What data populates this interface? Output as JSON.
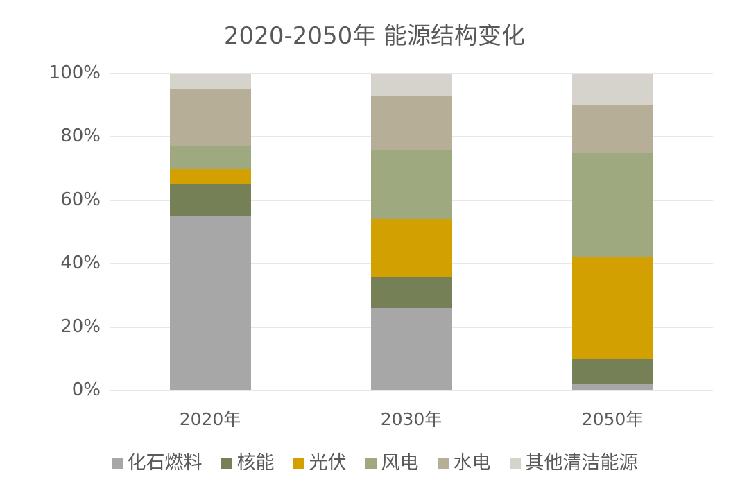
{
  "chart_data": {
    "type": "bar",
    "stacked": true,
    "title": "2020-2050年 能源结构变化",
    "categories": [
      "2020年",
      "2030年",
      "2050年"
    ],
    "series": [
      {
        "name": "化石燃料",
        "color": "#a7a7a7",
        "values": [
          55,
          26,
          2
        ]
      },
      {
        "name": "核能",
        "color": "#768057",
        "values": [
          10,
          10,
          8
        ]
      },
      {
        "name": "光伏",
        "color": "#d2a000",
        "values": [
          5,
          18,
          32
        ]
      },
      {
        "name": "风电",
        "color": "#9ea980",
        "values": [
          7,
          22,
          33
        ]
      },
      {
        "name": "水电",
        "color": "#b6ae97",
        "values": [
          18,
          17,
          15
        ]
      },
      {
        "name": "其他清洁能源",
        "color": "#d6d3cd",
        "values": [
          5,
          7,
          10
        ]
      }
    ],
    "y_ticks": [
      "0%",
      "20%",
      "40%",
      "60%",
      "80%",
      "100%"
    ],
    "ylim": [
      0,
      100
    ],
    "grid": true,
    "legend_position": "bottom",
    "colors": {
      "text": "#595959",
      "gridline": "#e7e7e7",
      "background": "#ffffff"
    }
  }
}
